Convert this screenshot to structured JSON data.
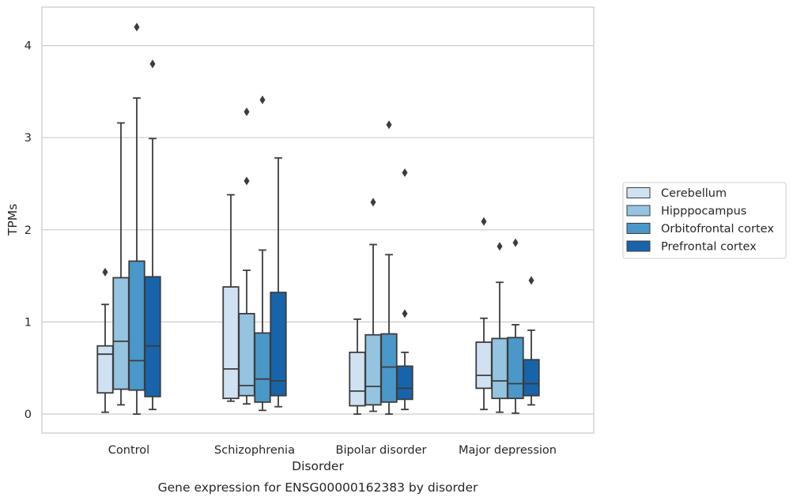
{
  "caption": "Gene expression for ENSG00000162383 by disorder",
  "chart_data": {
    "type": "boxplot",
    "xlabel": "Disorder",
    "ylabel": "TPMs",
    "ylim": [
      -0.2,
      4.42
    ],
    "yticks": [
      0,
      1,
      2,
      3,
      4
    ],
    "grid": "horizontal",
    "legend_position": "right",
    "categories": [
      "Control",
      "Schizophrenia",
      "Bipolar disorder",
      "Major depression"
    ],
    "series": [
      {
        "name": "Cerebellum",
        "color": "#d0e1f2",
        "boxes": [
          {
            "whisker_low": 0.02,
            "q1": 0.23,
            "median": 0.65,
            "q3": 0.74,
            "whisker_high": 1.19,
            "outliers": [
              1.54
            ]
          },
          {
            "whisker_low": 0.14,
            "q1": 0.17,
            "median": 0.49,
            "q3": 1.38,
            "whisker_high": 2.38,
            "outliers": []
          },
          {
            "whisker_low": 0.0,
            "q1": 0.09,
            "median": 0.25,
            "q3": 0.67,
            "whisker_high": 1.03,
            "outliers": []
          },
          {
            "whisker_low": 0.05,
            "q1": 0.28,
            "median": 0.42,
            "q3": 0.78,
            "whisker_high": 1.04,
            "outliers": [
              2.09
            ]
          }
        ]
      },
      {
        "name": "Hipppocampus",
        "color": "#94c4df",
        "boxes": [
          {
            "whisker_low": 0.1,
            "q1": 0.27,
            "median": 0.79,
            "q3": 1.48,
            "whisker_high": 3.16,
            "outliers": []
          },
          {
            "whisker_low": 0.11,
            "q1": 0.2,
            "median": 0.31,
            "q3": 1.09,
            "whisker_high": 1.56,
            "outliers": [
              2.53,
              3.28
            ]
          },
          {
            "whisker_low": 0.03,
            "q1": 0.1,
            "median": 0.3,
            "q3": 0.86,
            "whisker_high": 1.84,
            "outliers": [
              2.3
            ]
          },
          {
            "whisker_low": 0.02,
            "q1": 0.17,
            "median": 0.36,
            "q3": 0.82,
            "whisker_high": 1.43,
            "outliers": [
              1.82
            ]
          }
        ]
      },
      {
        "name": "Orbitofrontal cortex",
        "color": "#4a98c9",
        "boxes": [
          {
            "whisker_low": 0.0,
            "q1": 0.26,
            "median": 0.58,
            "q3": 1.66,
            "whisker_high": 3.43,
            "outliers": [
              4.2
            ]
          },
          {
            "whisker_low": 0.04,
            "q1": 0.13,
            "median": 0.38,
            "q3": 0.88,
            "whisker_high": 1.78,
            "outliers": [
              3.41
            ]
          },
          {
            "whisker_low": 0.0,
            "q1": 0.13,
            "median": 0.51,
            "q3": 0.87,
            "whisker_high": 1.73,
            "outliers": [
              3.14
            ]
          },
          {
            "whisker_low": 0.01,
            "q1": 0.17,
            "median": 0.33,
            "q3": 0.83,
            "whisker_high": 0.97,
            "outliers": [
              1.86
            ]
          }
        ]
      },
      {
        "name": "Prefrontal cortex",
        "color": "#1764ab",
        "boxes": [
          {
            "whisker_low": 0.05,
            "q1": 0.19,
            "median": 0.74,
            "q3": 1.49,
            "whisker_high": 2.99,
            "outliers": [
              3.8
            ]
          },
          {
            "whisker_low": 0.08,
            "q1": 0.2,
            "median": 0.36,
            "q3": 1.32,
            "whisker_high": 2.78,
            "outliers": []
          },
          {
            "whisker_low": 0.05,
            "q1": 0.16,
            "median": 0.28,
            "q3": 0.52,
            "whisker_high": 0.67,
            "outliers": [
              1.09,
              2.62
            ]
          },
          {
            "whisker_low": 0.1,
            "q1": 0.2,
            "median": 0.33,
            "q3": 0.59,
            "whisker_high": 0.91,
            "outliers": [
              1.45
            ]
          }
        ]
      }
    ]
  }
}
